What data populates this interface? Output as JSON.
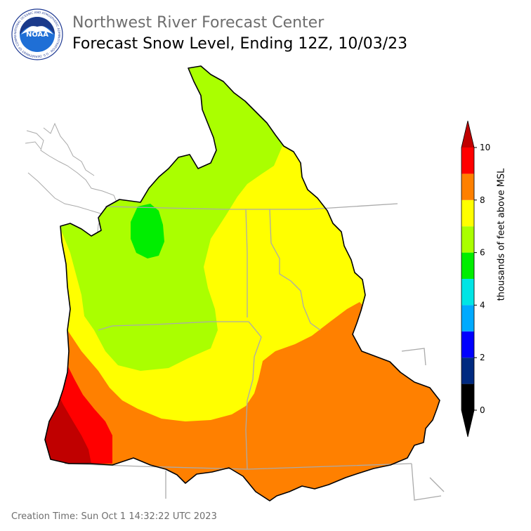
{
  "header": {
    "org_title": "Northwest River Forecast Center",
    "map_title": "Forecast Snow Level, Ending 12Z, 10/03/23",
    "logo_text": "NOAA",
    "logo_ring_text": "NATIONAL OCEANIC AND ATMOSPHERIC ADMINISTRATION · U.S. DEPARTMENT OF COMMERCE"
  },
  "footer": {
    "creation_time": "Creation Time: Sun Oct 1 14:32:22 UTC 2023"
  },
  "colorbar": {
    "label": "thousands of feet above MSL",
    "ticks": [
      "0",
      "2",
      "4",
      "6",
      "8",
      "10"
    ],
    "bins": [
      {
        "from": 0,
        "to": 1,
        "color": "#000000"
      },
      {
        "from": 1,
        "to": 2,
        "color": "#002a80"
      },
      {
        "from": 2,
        "to": 3,
        "color": "#0000ff"
      },
      {
        "from": 3,
        "to": 4,
        "color": "#00aaff"
      },
      {
        "from": 4,
        "to": 5,
        "color": "#00e5e5"
      },
      {
        "from": 5,
        "to": 6,
        "color": "#00ee00"
      },
      {
        "from": 6,
        "to": 7,
        "color": "#aaff00"
      },
      {
        "from": 7,
        "to": 8,
        "color": "#ffff00"
      },
      {
        "from": 8,
        "to": 9,
        "color": "#ff8000"
      },
      {
        "from": 9,
        "to": 10,
        "color": "#ff0000"
      }
    ],
    "under_color": "#000000",
    "over_color": "#c00000"
  },
  "colors": {
    "level_5_6": "#00ee00",
    "level_6_7": "#aaff00",
    "level_7_8": "#ffff00",
    "level_8_9": "#ff8000",
    "level_9_10": "#ff0000",
    "level_above_10": "#c00000",
    "boundary": "#000000",
    "state_lines": "#aaaaaa"
  }
}
